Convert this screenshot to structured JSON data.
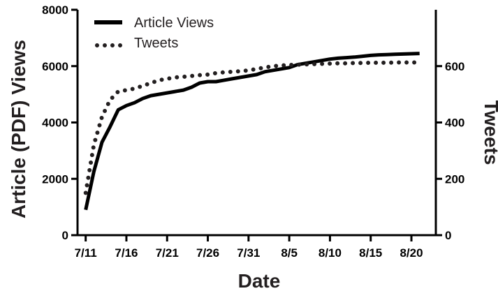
{
  "chart_data": {
    "type": "line",
    "title": "",
    "xlabel": "Date",
    "ylabel_left": "Article (PDF) Views",
    "ylabel_right": "Tweets",
    "x_ticks": [
      "7/11",
      "7/16",
      "7/21",
      "7/26",
      "7/31",
      "8/5",
      "8/10",
      "8/15",
      "8/20"
    ],
    "x_tick_days": [
      0,
      5,
      10,
      15,
      20,
      25,
      30,
      35,
      40
    ],
    "xlim_days": [
      -1,
      43
    ],
    "ylim_left": [
      0,
      8000
    ],
    "y_ticks_left": [
      0,
      2000,
      4000,
      6000,
      8000
    ],
    "ylim_right": [
      0,
      800
    ],
    "y_ticks_right": [
      0,
      200,
      400,
      600
    ],
    "grid": false,
    "legend_position": "top-left",
    "series": [
      {
        "name": "Article Views",
        "axis": "left",
        "style": "solid",
        "color": "#000000",
        "x_days": [
          0,
          1,
          2,
          3,
          4,
          5,
          6,
          7,
          8,
          9,
          10,
          11,
          12,
          13,
          14,
          15,
          16,
          17,
          18,
          19,
          20,
          21,
          22,
          23,
          24,
          25,
          26,
          27,
          28,
          29,
          30,
          31,
          32,
          33,
          34,
          35,
          36,
          37,
          38,
          39,
          40,
          41
        ],
        "values": [
          900,
          2250,
          3300,
          3850,
          4450,
          4600,
          4700,
          4850,
          4950,
          5000,
          5050,
          5100,
          5150,
          5250,
          5400,
          5450,
          5450,
          5500,
          5550,
          5600,
          5650,
          5700,
          5800,
          5850,
          5900,
          5950,
          6050,
          6100,
          6150,
          6200,
          6250,
          6280,
          6300,
          6320,
          6350,
          6380,
          6400,
          6410,
          6420,
          6430,
          6440,
          6450
        ]
      },
      {
        "name": "Tweets",
        "axis": "right",
        "style": "dotted",
        "color": "#231f20",
        "x_days": [
          0,
          1,
          2,
          3,
          4,
          5,
          6,
          7,
          8,
          9,
          10,
          11,
          12,
          13,
          14,
          15,
          16,
          17,
          18,
          19,
          20,
          21,
          22,
          23,
          24,
          25,
          26,
          27,
          28,
          29,
          30,
          31,
          32,
          33,
          34,
          35,
          36,
          37,
          38,
          39,
          40,
          41
        ],
        "values": [
          150,
          320,
          420,
          480,
          510,
          515,
          520,
          530,
          540,
          550,
          555,
          560,
          562,
          565,
          568,
          570,
          575,
          578,
          580,
          582,
          585,
          590,
          595,
          600,
          602,
          604,
          605,
          606,
          607,
          608,
          609,
          610,
          610,
          611,
          611,
          612,
          612,
          612,
          613,
          613,
          613,
          613
        ]
      }
    ]
  }
}
